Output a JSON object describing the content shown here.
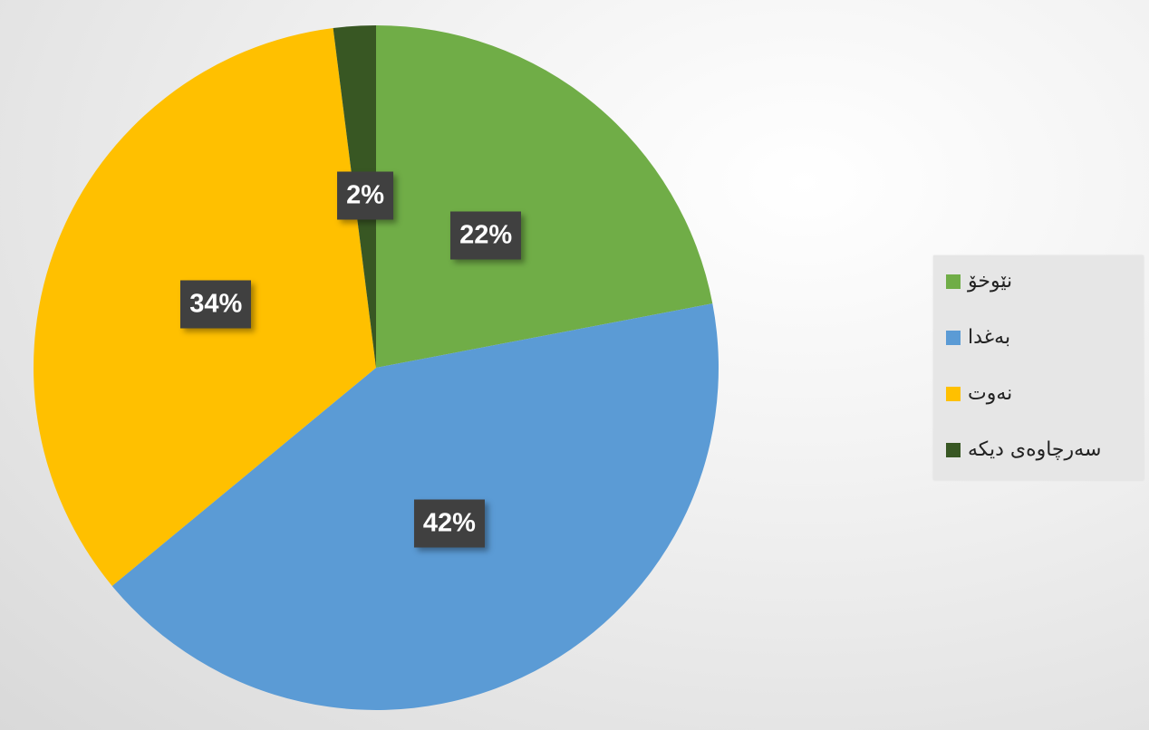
{
  "chart_data": {
    "type": "pie",
    "categories": [
      "نێوخۆ",
      "بەغدا",
      "نەوت",
      "سەرچاوەی دیکە"
    ],
    "values": [
      22,
      42,
      34,
      2
    ],
    "data_labels": [
      "22%",
      "42%",
      "34%",
      "2%"
    ],
    "colors": [
      "#70ad47",
      "#5b9bd5",
      "#ffc000",
      "#385723"
    ],
    "start_angle": "top, clockwise",
    "legend_position": "right"
  }
}
